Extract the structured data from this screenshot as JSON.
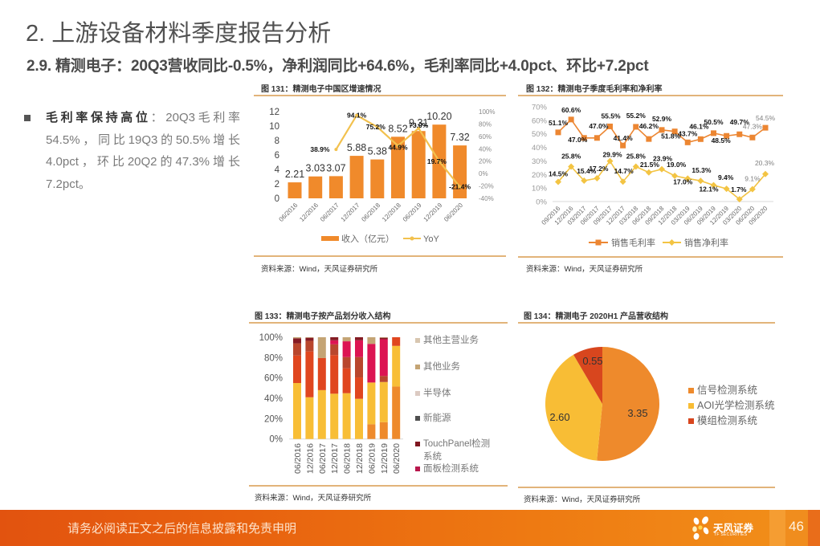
{
  "header": {
    "title": "2. 上游设备材料季度报告分析",
    "subtitle": "2.9. 精测电子：20Q3营收同比-0.5%，净利润同比+64.6%，毛利率同比+4.0pct、环比+7.2pct"
  },
  "bullet": {
    "heading": "毛利率保持高位",
    "body": "：20Q3毛利率54.5%，同比19Q3的50.5%增长4.0pct，环比20Q2的47.3%增长7.2pct。"
  },
  "figures": [
    {
      "caption": "图 131：精测电子中国区增速情况",
      "source": "资料来源：Wind，天风证券研究所"
    },
    {
      "caption": "图 132：精测电子季度毛利率和净利率",
      "source": "资料来源：Wind，天风证券研究所"
    },
    {
      "caption": "图 133：精测电子按产品划分收入结构",
      "source": "资料来源：Wind，天风证券研究所"
    },
    {
      "caption": "图 134：精测电子 2020H1 产品营收结构",
      "source": "资料来源：Wind，天风证券研究所"
    }
  ],
  "footer": {
    "disclaimer": "请务必阅读正文之后的信息披露和免责申明",
    "brand": "天风证券",
    "brand_en": "TF SECURITIES",
    "page_number": "46"
  },
  "colors": {
    "accent": "#ef7f12",
    "caption_rule": "#e2b47a",
    "footer_start": "#e2530f",
    "footer_end": "#f2901a"
  },
  "chart_data": [
    {
      "type": "bar",
      "title": "图 131：精测电子中国区增速情况",
      "categories": [
        "06/2016",
        "12/2016",
        "06/2017",
        "12/2017",
        "06/2018",
        "12/2018",
        "06/2019",
        "12/2019",
        "06/2020"
      ],
      "series": [
        {
          "name": "收入（亿元）",
          "type": "bar",
          "axis": "left",
          "color": "#f08a2b",
          "values": [
            2.21,
            3.03,
            3.07,
            5.88,
            5.38,
            8.52,
            9.31,
            10.2,
            7.32
          ],
          "labels": [
            "2.21",
            "3.03",
            "3.07",
            "5.88",
            "5.38",
            "8.52",
            "9.31",
            "10.20",
            "7.32"
          ]
        },
        {
          "name": "YoY",
          "type": "line",
          "axis": "right",
          "color": "#f2c14e",
          "values": [
            null,
            null,
            38.9,
            94.1,
            75.2,
            44.9,
            73.0,
            19.7,
            -21.4
          ],
          "labels": [
            null,
            null,
            "38.9%",
            "94.1%",
            "75.2%",
            "44.9%",
            "73.0%",
            "19.7%",
            "-21.4%"
          ]
        }
      ],
      "xlabel": "",
      "ylabel": "",
      "ylim": [
        0,
        12
      ],
      "yticks": [
        0,
        2,
        4,
        6,
        8,
        10,
        12
      ],
      "y2lim": [
        -40,
        100
      ],
      "y2ticks": [
        -40,
        -20,
        0,
        20,
        40,
        60,
        80,
        100
      ],
      "y2tick_labels": [
        "-40%",
        "-20%",
        "0%",
        "20%",
        "40%",
        "60%",
        "80%",
        "100%"
      ],
      "grid": false,
      "legend": "bottom"
    },
    {
      "type": "line",
      "title": "图 132：精测电子季度毛利率和净利率",
      "categories": [
        "09/2016",
        "12/2016",
        "03/2017",
        "06/2017",
        "09/2017",
        "12/2017",
        "03/2018",
        "06/2018",
        "09/2018",
        "12/2018",
        "03/2019",
        "06/2019",
        "09/2019",
        "12/2019",
        "03/2020",
        "06/2020",
        "09/2020"
      ],
      "series": [
        {
          "name": "销售毛利率",
          "color": "#ec8632",
          "marker": "square",
          "values": [
            51.1,
            60.6,
            47.0,
            47.0,
            55.5,
            41.4,
            55.2,
            46.2,
            52.9,
            51.8,
            43.7,
            46.1,
            50.5,
            48.5,
            49.7,
            47.3,
            54.5
          ],
          "labels": [
            "51.1%",
            "60.6%",
            "47.0%",
            "47.0%",
            "55.5%",
            "41.4%",
            "55.2%",
            "46.2%",
            "52.9%",
            "51.8%",
            "43.7%",
            "46.1%",
            "50.5%",
            "48.5%",
            "49.7%",
            "47.3%",
            "54.5%"
          ]
        },
        {
          "name": "销售净利率",
          "color": "#f3c443",
          "marker": "diamond",
          "values": [
            14.5,
            25.8,
            15.4,
            17.2,
            29.9,
            14.7,
            25.8,
            21.5,
            23.9,
            19.0,
            17.0,
            15.3,
            12.1,
            9.4,
            1.7,
            9.1,
            20.3
          ],
          "labels": [
            "14.5%",
            "25.8%",
            "15.4%",
            "17.2%",
            "29.9%",
            "14.7%",
            "25.8%",
            "21.5%",
            "23.9%",
            "19.0%",
            "17.0%",
            "15.3%",
            "12.1%",
            "9.4%",
            "1.7%",
            "9.1%",
            "20.3%"
          ]
        }
      ],
      "xlabel": "",
      "ylabel": "",
      "ylim": [
        0,
        70
      ],
      "yticks": [
        0,
        10,
        20,
        30,
        40,
        50,
        60,
        70
      ],
      "ytick_labels": [
        "0%",
        "10%",
        "20%",
        "30%",
        "40%",
        "50%",
        "60%",
        "70%"
      ],
      "grid": false,
      "legend": "bottom"
    },
    {
      "type": "bar",
      "stacked": true,
      "title": "图 133：精测电子按产品划分收入结构",
      "categories": [
        "06/2016",
        "12/2016",
        "06/2017",
        "12/2017",
        "06/2018",
        "12/2018",
        "06/2019",
        "12/2019",
        "06/2020"
      ],
      "series": [
        {
          "name": null,
          "color": "#ee8a2c",
          "values": [
            0,
            0,
            0,
            0,
            0,
            0,
            14.5,
            16.5,
            51.5
          ]
        },
        {
          "name": null,
          "color": "#f8be36",
          "values": [
            55,
            41,
            48,
            44.5,
            45,
            39.5,
            41,
            39.5,
            40
          ]
        },
        {
          "name": null,
          "color": "#e0461f",
          "values": [
            27,
            45,
            31.5,
            38,
            24.5,
            21,
            0,
            0,
            8.5
          ]
        },
        {
          "name": null,
          "color": "#b9462d",
          "values": [
            12,
            10.5,
            0,
            10.5,
            11,
            20,
            0,
            6,
            0
          ]
        },
        {
          "name": "面板检测系统",
          "color": "#dc1452",
          "values": [
            0,
            0,
            0,
            4,
            15.5,
            16.5,
            38,
            36,
            0
          ]
        },
        {
          "name": "TouchPanel检测系统",
          "color": "#851b24",
          "values": [
            5,
            3,
            0,
            3,
            0,
            3,
            0,
            1.5,
            0
          ]
        },
        {
          "name": "其他业务",
          "color": "#c4a474",
          "values": [
            1,
            0.5,
            20.5,
            0,
            4,
            0,
            6.5,
            0.5,
            0
          ]
        }
      ],
      "xlabel": "",
      "ylabel": "",
      "ylim": [
        0,
        100
      ],
      "yticks": [
        0,
        20,
        40,
        60,
        80,
        100
      ],
      "ytick_labels": [
        "0%",
        "20%",
        "40%",
        "60%",
        "80%",
        "100%"
      ],
      "grid": false,
      "legend": "right",
      "legend_entries": [
        {
          "name": "其他主营业务",
          "color": "#d8c6b0"
        },
        {
          "name": "其他业务",
          "color": "#c4a474"
        },
        {
          "name": "半导体",
          "color": "#dccac2"
        },
        {
          "name": "新能源",
          "color": "#4f4f4f"
        },
        {
          "name": "TouchPanel检测系统",
          "color": "#7f1620"
        },
        {
          "name": "面板检测系统",
          "color": "#b8174c"
        }
      ]
    },
    {
      "type": "pie",
      "title": "图 134：精测电子 2020H1 产品营收结构",
      "slices": [
        {
          "label": "信号检测系统",
          "value": 3.35,
          "value_label": "3.35",
          "color": "#ee8a2c"
        },
        {
          "label": "AOI光学检测系统",
          "value": 2.6,
          "value_label": "2.60",
          "color": "#f8bd35"
        },
        {
          "label": "模组检测系统",
          "value": 0.55,
          "value_label": "0.55",
          "color": "#d8461e"
        }
      ],
      "legend": "right"
    }
  ]
}
